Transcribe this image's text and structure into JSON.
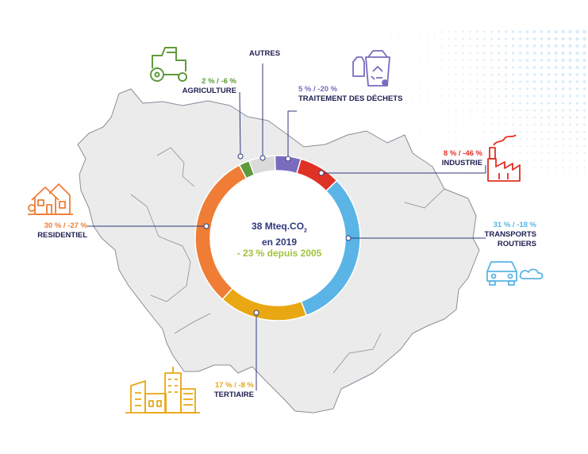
{
  "chart_data": {
    "type": "donut",
    "center": {
      "line1": "38 Mteq.CO",
      "line1_sub": "2",
      "line2": "en 2019",
      "line3": "- 23 % depuis 2005"
    },
    "slices": [
      {
        "key": "dechets",
        "name": "TRAITEMENT DES DÉCHETS",
        "value": 5,
        "change": "-20 %",
        "label": "5 % / -20 %",
        "color": "#7b6bbf"
      },
      {
        "key": "industrie",
        "name": "INDUSTRIE",
        "value": 8,
        "change": "-46 %",
        "label": "8 % / -46 %",
        "color": "#e03127"
      },
      {
        "key": "transports",
        "name": "TRANSPORTS ROUTIERS",
        "value": 31,
        "change": "-18 %",
        "label": "31 % / -18 %",
        "color": "#5ab4e5"
      },
      {
        "key": "tertiaire",
        "name": "TERTIAIRE",
        "value": 17,
        "change": "-8 %",
        "label": "17 % / -8 %",
        "color": "#e8a713"
      },
      {
        "key": "residentiel",
        "name": "RESIDENTIEL",
        "value": 30,
        "change": "-27 %",
        "label": "30 % / -27 %",
        "color": "#ef7d35"
      },
      {
        "key": "agriculture",
        "name": "AGRICULTURE",
        "value": 2,
        "change": "-6 %",
        "label": "2 % / -6 %",
        "color": "#5f9a3c"
      },
      {
        "key": "autres",
        "name": "AUTRES",
        "value": 5,
        "change": "",
        "label": "",
        "color": "#dadada"
      }
    ]
  },
  "labels": {
    "autres": {
      "name": "AUTRES"
    },
    "agriculture": {
      "pct": "2 % / -6 %",
      "name": "AGRICULTURE"
    },
    "dechets": {
      "pct": "5 % / -20 %",
      "name": "TRAITEMENT DES DÉCHETS"
    },
    "industrie": {
      "pct": "8 % / -46 %",
      "name": "INDUSTRIE"
    },
    "transports": {
      "pct": "31 % / -18 %",
      "name1": "TRANSPORTS",
      "name2": "ROUTIERS"
    },
    "residentiel": {
      "pct": "30 % / -27 %",
      "name": "RESIDENTIEL"
    },
    "tertiaire": {
      "pct": "17 % / -8 %",
      "name": "TERTIAIRE"
    }
  },
  "colors": {
    "map_fill": "#ebebec",
    "map_stroke": "#8c8c9a",
    "leader": "#2f3a7a",
    "dots": "#d9ecf7"
  },
  "icons": [
    "tractor-icon",
    "recycling-bin-icon",
    "factory-icon",
    "house-icon",
    "car-icon",
    "office-buildings-icon"
  ]
}
